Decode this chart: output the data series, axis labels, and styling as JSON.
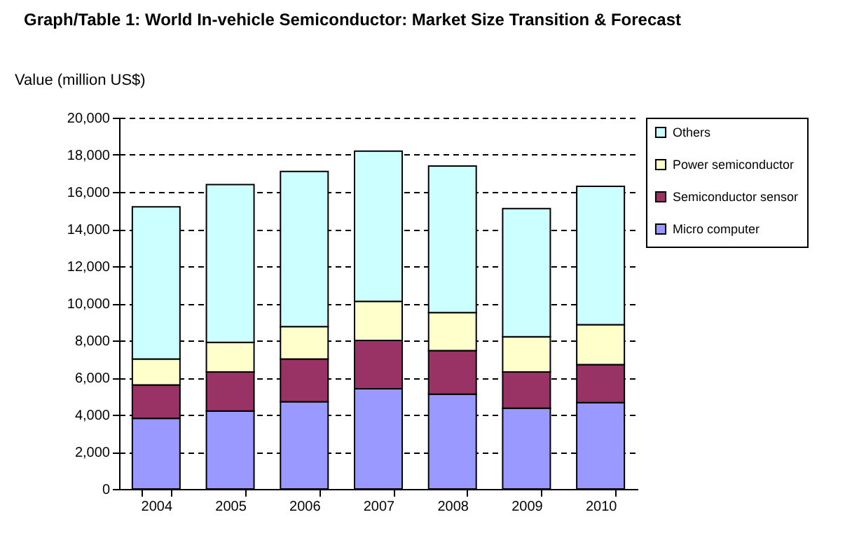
{
  "chart_data": {
    "type": "bar",
    "stacked": true,
    "title": "Graph/Table 1: World In-vehicle Semiconductor: Market Size Transition & Forecast",
    "ylabel": "Value (million US$)",
    "categories": [
      "2004",
      "2005",
      "2006",
      "2007",
      "2008",
      "2009",
      "2010"
    ],
    "series": [
      {
        "name": "Micro computer",
        "color": "#9999ff",
        "values": [
          3800,
          4200,
          4700,
          5400,
          5100,
          4350,
          4650
        ]
      },
      {
        "name": "Semiconductor sensor",
        "color": "#993366",
        "values": [
          1800,
          2100,
          2300,
          2600,
          2350,
          1950,
          2050
        ]
      },
      {
        "name": "Power semiconductor",
        "color": "#ffffcc",
        "values": [
          1400,
          1600,
          1750,
          2100,
          2050,
          1900,
          2150
        ]
      },
      {
        "name": "Others",
        "color": "#ccffff",
        "values": [
          8200,
          8500,
          8350,
          8100,
          7900,
          6900,
          7450
        ]
      }
    ],
    "ylim": [
      0,
      20000
    ],
    "yticks": [
      0,
      {
        "value": 2000,
        "label": "2,000"
      },
      {
        "value": 4000,
        "label": "4,000"
      },
      {
        "value": 6000,
        "label": "6,000"
      },
      {
        "value": 8000,
        "label": "8,000"
      },
      {
        "value": 10000,
        "label": "10,000"
      },
      {
        "value": 12000,
        "label": "12,000"
      },
      {
        "value": 14000,
        "label": "14,000"
      },
      {
        "value": 16000,
        "label": "16,000"
      },
      {
        "value": 18000,
        "label": "18,000"
      },
      {
        "value": 20000,
        "label": "20,000"
      }
    ],
    "grid": "y",
    "legend": "right"
  }
}
